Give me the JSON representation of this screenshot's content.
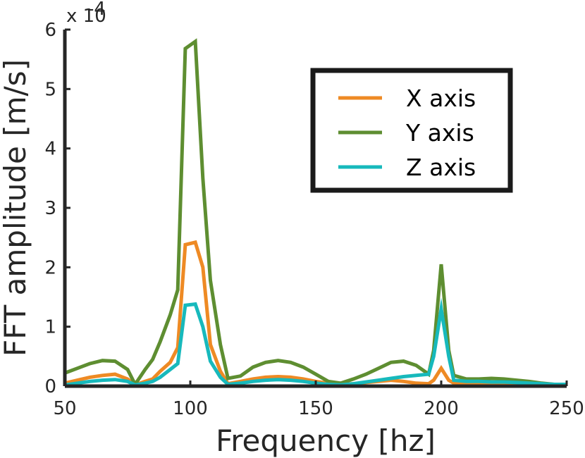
{
  "chart_data": {
    "type": "line",
    "title": "",
    "xlabel": "Frequency [hz]",
    "ylabel": "FFT amplitude [m/s]",
    "xlim": [
      50,
      250
    ],
    "ylim": [
      0,
      6
    ],
    "y_multiplier_label": "x 10",
    "y_multiplier_exponent": "-4",
    "x_ticks": [
      "50",
      "100",
      "150",
      "200",
      "250"
    ],
    "y_ticks": [
      "0",
      "1",
      "2",
      "3",
      "4",
      "5",
      "6"
    ],
    "grid": false,
    "legend_position": "top-right",
    "series": [
      {
        "name": "X axis",
        "color": "#EE8A24",
        "x": [
          50,
          55,
          60,
          65,
          70,
          75,
          78,
          82,
          85,
          88,
          92,
          95,
          98,
          102,
          105,
          108,
          112,
          115,
          120,
          125,
          130,
          135,
          140,
          145,
          150,
          155,
          160,
          165,
          170,
          175,
          180,
          185,
          190,
          195,
          197,
          200,
          203,
          205,
          210,
          215,
          220,
          225,
          230,
          235,
          240,
          245,
          250
        ],
        "y": [
          0.05,
          0.1,
          0.15,
          0.18,
          0.2,
          0.12,
          0.02,
          0.08,
          0.12,
          0.25,
          0.4,
          0.65,
          2.38,
          2.42,
          2.0,
          0.7,
          0.25,
          0.04,
          0.08,
          0.12,
          0.15,
          0.16,
          0.15,
          0.12,
          0.08,
          0.05,
          0.03,
          0.04,
          0.06,
          0.08,
          0.1,
          0.08,
          0.05,
          0.04,
          0.1,
          0.3,
          0.1,
          0.05,
          0.05,
          0.04,
          0.05,
          0.04,
          0.03,
          0.02,
          0.02,
          0.02,
          0.02
        ]
      },
      {
        "name": "Y axis",
        "color": "#5E8E31",
        "x": [
          50,
          55,
          60,
          65,
          70,
          75,
          78,
          82,
          85,
          88,
          92,
          95,
          98,
          102,
          105,
          108,
          112,
          115,
          120,
          125,
          130,
          135,
          140,
          145,
          150,
          155,
          160,
          165,
          170,
          175,
          180,
          185,
          190,
          195,
          197,
          200,
          203,
          205,
          210,
          215,
          220,
          225,
          230,
          235,
          240,
          245,
          250
        ],
        "y": [
          0.22,
          0.3,
          0.38,
          0.43,
          0.42,
          0.28,
          0.03,
          0.28,
          0.45,
          0.75,
          1.2,
          1.62,
          5.68,
          5.8,
          3.5,
          1.78,
          0.7,
          0.13,
          0.17,
          0.32,
          0.4,
          0.43,
          0.4,
          0.32,
          0.2,
          0.08,
          0.05,
          0.12,
          0.2,
          0.3,
          0.4,
          0.42,
          0.35,
          0.2,
          0.6,
          2.05,
          0.6,
          0.18,
          0.12,
          0.12,
          0.13,
          0.12,
          0.1,
          0.08,
          0.05,
          0.03,
          0.02
        ]
      },
      {
        "name": "Z axis",
        "color": "#17B9BC",
        "x": [
          50,
          55,
          60,
          65,
          70,
          75,
          78,
          82,
          85,
          88,
          92,
          95,
          98,
          102,
          105,
          108,
          112,
          115,
          120,
          125,
          130,
          135,
          140,
          145,
          150,
          155,
          160,
          165,
          170,
          175,
          180,
          185,
          190,
          195,
          197,
          200,
          203,
          205,
          210,
          215,
          220,
          225,
          230,
          235,
          240,
          245,
          250
        ],
        "y": [
          0.02,
          0.05,
          0.08,
          0.1,
          0.11,
          0.08,
          0.02,
          0.05,
          0.08,
          0.15,
          0.28,
          0.38,
          1.36,
          1.38,
          1.0,
          0.42,
          0.15,
          0.03,
          0.05,
          0.08,
          0.1,
          0.11,
          0.1,
          0.08,
          0.05,
          0.03,
          0.02,
          0.04,
          0.07,
          0.1,
          0.13,
          0.16,
          0.18,
          0.2,
          0.5,
          1.3,
          0.5,
          0.1,
          0.08,
          0.08,
          0.07,
          0.07,
          0.06,
          0.05,
          0.04,
          0.03,
          0.03
        ]
      }
    ]
  }
}
